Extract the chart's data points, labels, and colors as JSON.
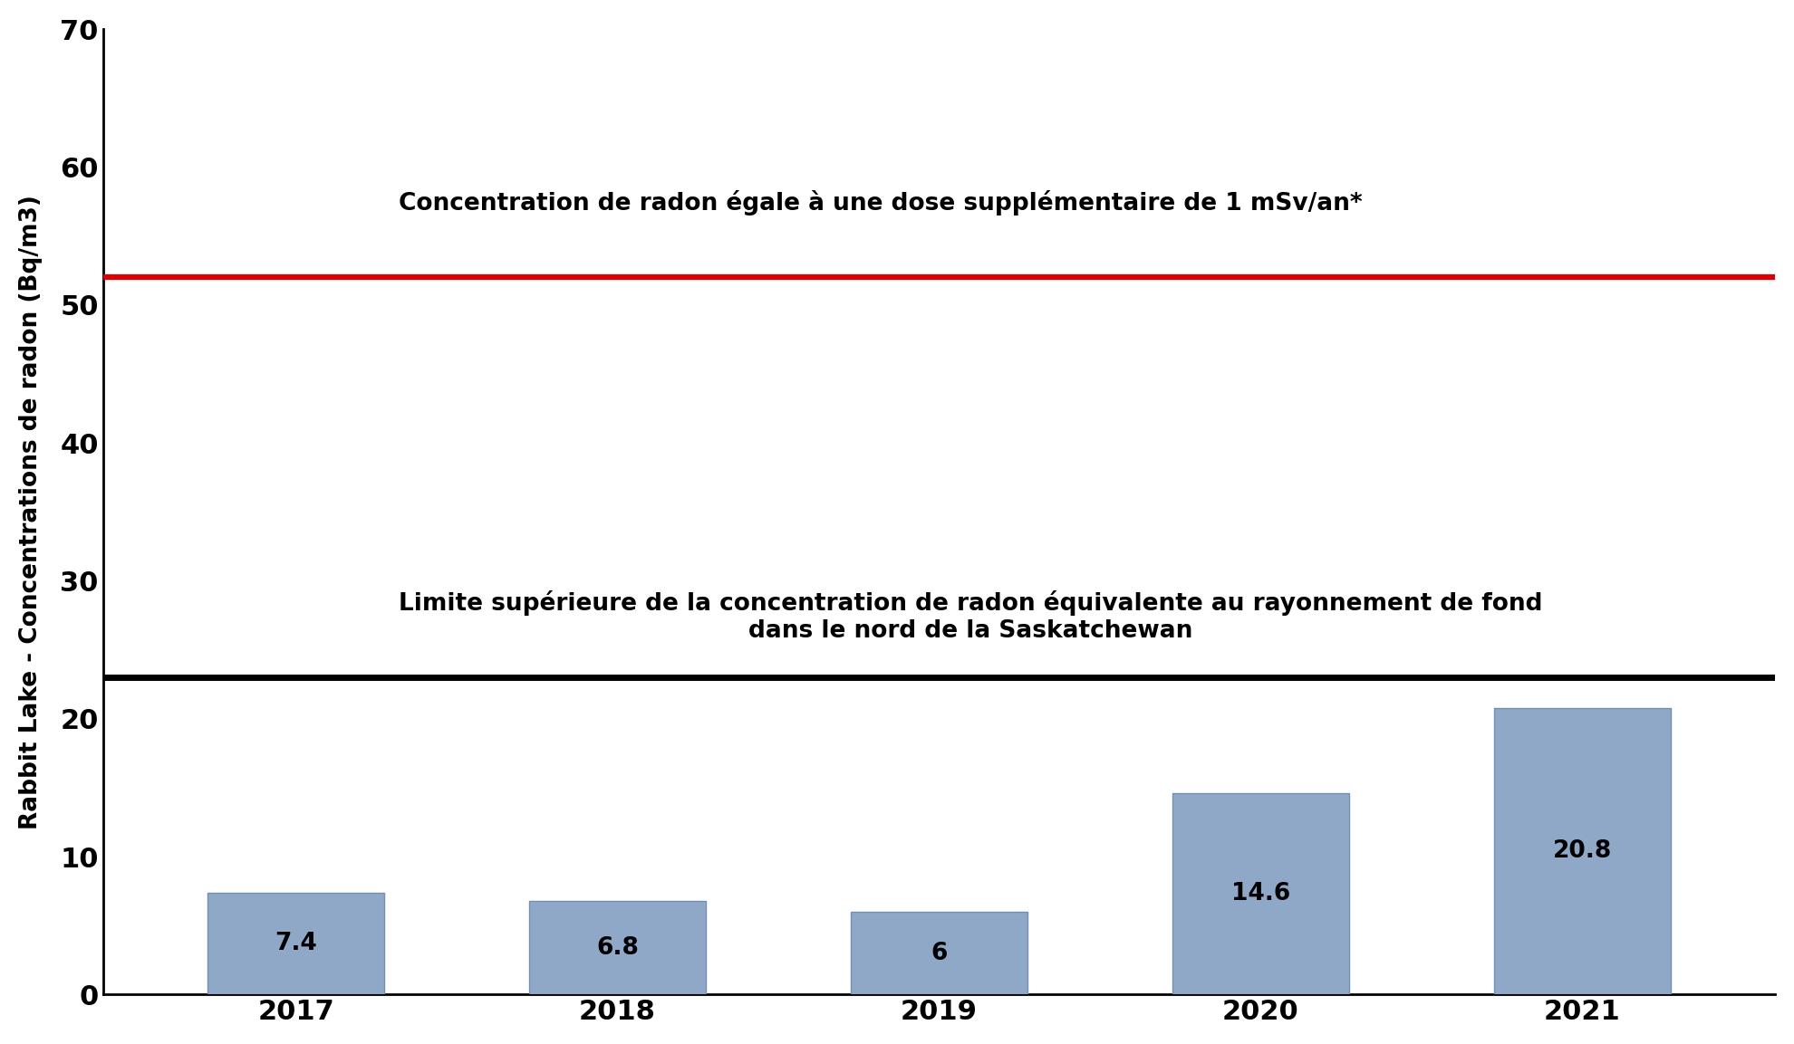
{
  "categories": [
    "2017",
    "2018",
    "2019",
    "2020",
    "2021"
  ],
  "values": [
    7.4,
    6.8,
    6.0,
    14.6,
    20.8
  ],
  "bar_color": "#8FA8C8",
  "bar_edgecolor": "#7090B0",
  "ylim": [
    0,
    70
  ],
  "yticks": [
    0,
    10,
    20,
    30,
    40,
    50,
    60,
    70
  ],
  "ylabel": "Rabbit Lake - Concentrations de radon (Bq/m3)",
  "red_line_y": 52.0,
  "black_line_y": 23.0,
  "red_line_label": "Concentration de radon égale à une dose supplémentaire de 1 mSv/an*",
  "black_line_label_line1": "Limite supérieure de la concentration de radon équivalente au rayonnement de fond",
  "black_line_label_line2": "dans le nord de la Saskatchewan",
  "red_line_color": "#DD0000",
  "black_line_color": "#000000",
  "background_color": "#FFFFFF",
  "tick_fontsize": 22,
  "ylabel_fontsize": 19,
  "annotation_fontsize": 19,
  "reference_label_fontsize": 19,
  "bar_width": 0.55
}
